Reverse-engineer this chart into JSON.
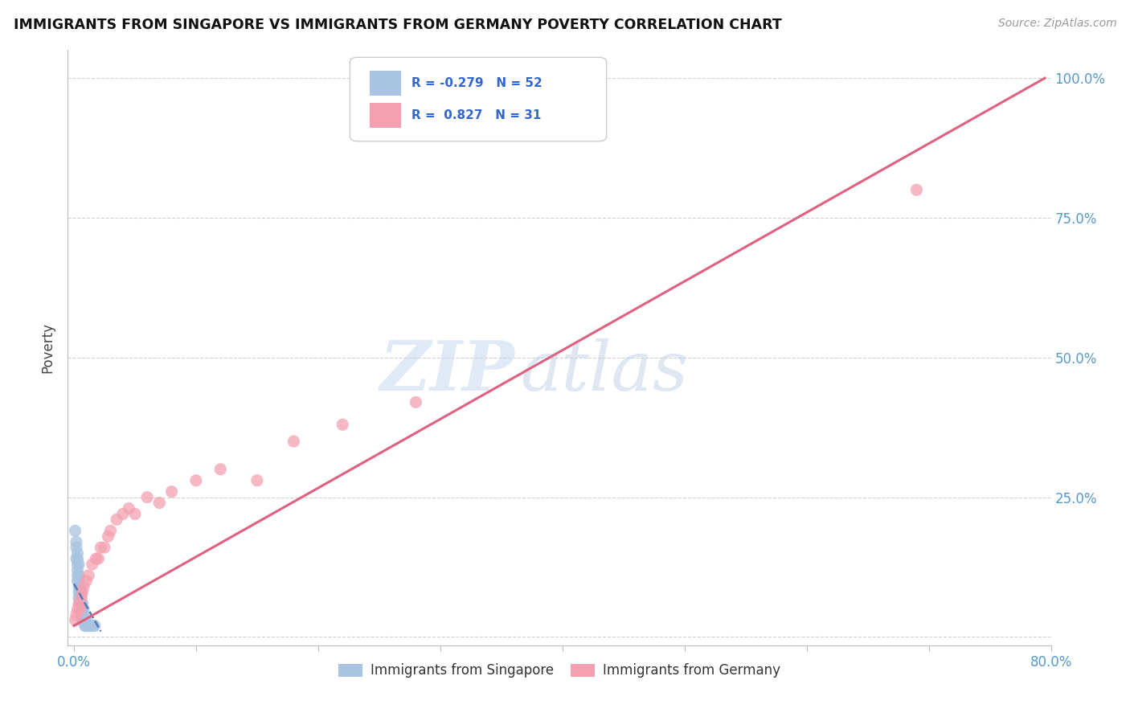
{
  "title": "IMMIGRANTS FROM SINGAPORE VS IMMIGRANTS FROM GERMANY POVERTY CORRELATION CHART",
  "source": "Source: ZipAtlas.com",
  "ylabel": "Poverty",
  "xlim": [
    -0.005,
    0.8
  ],
  "ylim": [
    -0.015,
    1.05
  ],
  "legend_r_singapore": "-0.279",
  "legend_n_singapore": "52",
  "legend_r_germany": "0.827",
  "legend_n_germany": "31",
  "singapore_color": "#a8c4e0",
  "germany_color": "#f4a0b0",
  "singapore_line_color": "#5577bb",
  "germany_line_color": "#e06080",
  "watermark_zip": "ZIP",
  "watermark_atlas": "atlas",
  "watermark_color": "#c8ddf0",
  "background_color": "#ffffff",
  "grid_color": "#cccccc",
  "sg_x": [
    0.001,
    0.002,
    0.002,
    0.003,
    0.003,
    0.003,
    0.004,
    0.004,
    0.004,
    0.004,
    0.005,
    0.005,
    0.005,
    0.005,
    0.005,
    0.006,
    0.006,
    0.006,
    0.006,
    0.007,
    0.007,
    0.007,
    0.007,
    0.008,
    0.008,
    0.008,
    0.009,
    0.009,
    0.01,
    0.01,
    0.01,
    0.011,
    0.011,
    0.012,
    0.012,
    0.013,
    0.014,
    0.015,
    0.016,
    0.017,
    0.003,
    0.003,
    0.004,
    0.005,
    0.005,
    0.006,
    0.007,
    0.008,
    0.002,
    0.003,
    0.004,
    0.006
  ],
  "sg_y": [
    0.19,
    0.16,
    0.14,
    0.13,
    0.12,
    0.1,
    0.1,
    0.09,
    0.08,
    0.07,
    0.08,
    0.07,
    0.06,
    0.06,
    0.05,
    0.06,
    0.05,
    0.04,
    0.04,
    0.05,
    0.04,
    0.04,
    0.03,
    0.04,
    0.03,
    0.03,
    0.03,
    0.02,
    0.03,
    0.02,
    0.02,
    0.02,
    0.02,
    0.02,
    0.02,
    0.02,
    0.02,
    0.02,
    0.02,
    0.02,
    0.15,
    0.11,
    0.13,
    0.09,
    0.07,
    0.08,
    0.06,
    0.05,
    0.17,
    0.14,
    0.11,
    0.07
  ],
  "de_x": [
    0.001,
    0.002,
    0.003,
    0.004,
    0.005,
    0.006,
    0.007,
    0.008,
    0.01,
    0.012,
    0.015,
    0.018,
    0.02,
    0.022,
    0.025,
    0.028,
    0.03,
    0.035,
    0.04,
    0.045,
    0.05,
    0.06,
    0.07,
    0.08,
    0.1,
    0.12,
    0.15,
    0.18,
    0.22,
    0.28,
    0.69
  ],
  "de_y": [
    0.03,
    0.04,
    0.05,
    0.06,
    0.05,
    0.07,
    0.08,
    0.09,
    0.1,
    0.11,
    0.13,
    0.14,
    0.14,
    0.16,
    0.16,
    0.18,
    0.19,
    0.21,
    0.22,
    0.23,
    0.22,
    0.25,
    0.24,
    0.26,
    0.28,
    0.3,
    0.28,
    0.35,
    0.38,
    0.42,
    0.8
  ],
  "sg_line_x0": 0.0,
  "sg_line_x1": 0.022,
  "sg_line_y0": 0.095,
  "sg_line_y1": 0.01,
  "de_line_x0": 0.0,
  "de_line_x1": 0.795,
  "de_line_y0": 0.02,
  "de_line_y1": 1.0
}
